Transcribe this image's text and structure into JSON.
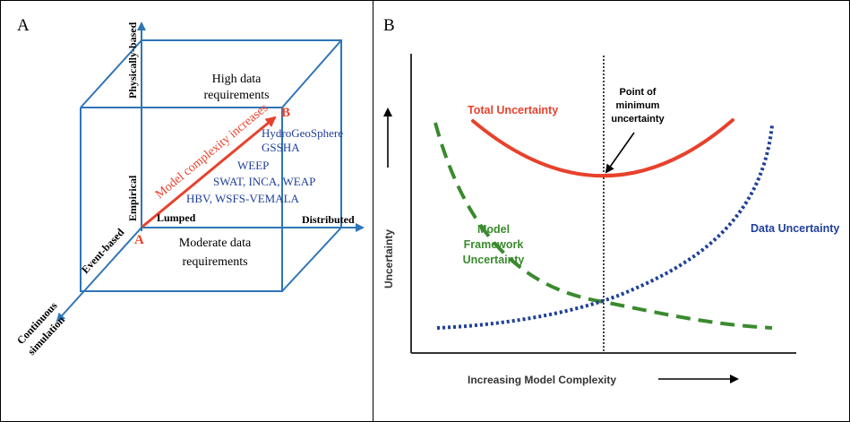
{
  "panel_a": {
    "label": "A",
    "axes": {
      "vertical_top": "Physically-based",
      "vertical_mid": "Empirical",
      "horizontal_left": "Lumped",
      "horizontal_right": "Distributed",
      "depth_near": "Event-based",
      "depth_far_line1": "Continuous",
      "depth_far_line2": "simulation"
    },
    "top_face_line1": "High data",
    "top_face_line2": "requirements",
    "bottom_face_line1": "Moderate data",
    "bottom_face_line2": "requirements",
    "arrow_label": "Model complexity increases",
    "point_a": "A",
    "point_b": "B",
    "models": [
      "HydroGeoSphere",
      "GSSHA",
      "WEEP",
      "SWAT, INCA, WEAP",
      "HBV, WSFS-VEMALA"
    ],
    "colors": {
      "blue": "#2e75b6",
      "red": "#e8412c",
      "model_text": "#1f3f9a"
    }
  },
  "panel_b": {
    "label": "B",
    "y_axis_label": "Uncertainty",
    "x_axis_label": "Increasing Model Complexity",
    "total_label": "Total Uncertainty",
    "model_label_line1": "Model",
    "model_label_line2": "Framework",
    "model_label_line3": "Uncertainty",
    "data_label": "Data Uncertainty",
    "minimum_line1": "Point of",
    "minimum_line2": "minimum",
    "minimum_line3": "uncertainty",
    "colors": {
      "total": "#e8412c",
      "model": "#3a8a2e",
      "data": "#1f3f9a"
    }
  }
}
